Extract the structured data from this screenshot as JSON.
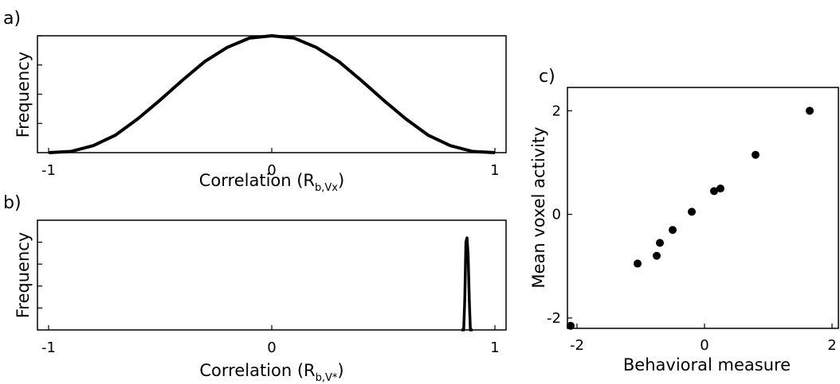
{
  "chart_data": [
    {
      "panel_label": "a)",
      "type": "line",
      "xlabel_main": "Correlation (R",
      "xlabel_sub": "b,Vx",
      "xlabel_close": ")",
      "ylabel": "Frequency",
      "xlim": [
        -1.05,
        1.05
      ],
      "ylim": [
        0,
        1
      ],
      "x_ticks": [
        -1,
        0,
        1
      ],
      "x_tick_labels": [
        "-1",
        "0",
        "1"
      ],
      "y_ticks": [
        0.25,
        0.5,
        0.75,
        1.0
      ],
      "series": [
        {
          "x": [
            -1,
            -0.9,
            -0.8,
            -0.7,
            -0.6,
            -0.5,
            -0.4,
            -0.3,
            -0.2,
            -0.1,
            0,
            0.1,
            0.2,
            0.3,
            0.4,
            0.5,
            0.6,
            0.7,
            0.8,
            0.9,
            1
          ],
          "y": [
            0,
            0.01,
            0.06,
            0.15,
            0.29,
            0.45,
            0.62,
            0.78,
            0.9,
            0.98,
            1,
            0.98,
            0.9,
            0.78,
            0.62,
            0.45,
            0.29,
            0.15,
            0.06,
            0.01,
            0
          ]
        }
      ]
    },
    {
      "panel_label": "b)",
      "type": "line",
      "xlabel_main": "Correlation (R",
      "xlabel_sub": "b,V*",
      "xlabel_close": ")",
      "ylabel": "Frequency",
      "xlim": [
        -1.05,
        1.05
      ],
      "ylim": [
        0,
        1.25
      ],
      "x_ticks": [
        -1,
        0,
        1
      ],
      "x_tick_labels": [
        "-1",
        "0",
        "1"
      ],
      "y_ticks": [
        0.25,
        0.5,
        0.75,
        1.0
      ],
      "series": [
        {
          "x": [
            0.85,
            0.86,
            0.865,
            0.87,
            0.875,
            0.88,
            0.885,
            0.89,
            0.9
          ],
          "y": [
            0,
            0,
            0.35,
            1.0,
            1.05,
            0.85,
            0.35,
            0,
            0
          ]
        }
      ]
    },
    {
      "panel_label": "c)",
      "type": "scatter",
      "xlabel": "Behavioral measure",
      "ylabel": "Mean voxel activity",
      "xlim": [
        -2.15,
        2.1
      ],
      "ylim": [
        -2.2,
        2.45
      ],
      "x_ticks": [
        -2,
        0,
        2
      ],
      "x_tick_labels": [
        "-2",
        "0",
        "2"
      ],
      "y_ticks": [
        -2,
        0,
        2
      ],
      "y_tick_labels": [
        "-2",
        "0",
        "2"
      ],
      "points": [
        {
          "x": -2.1,
          "y": -2.15
        },
        {
          "x": -1.05,
          "y": -0.95
        },
        {
          "x": -0.75,
          "y": -0.8
        },
        {
          "x": -0.7,
          "y": -0.55
        },
        {
          "x": -0.5,
          "y": -0.3
        },
        {
          "x": -0.2,
          "y": 0.05
        },
        {
          "x": 0.15,
          "y": 0.45
        },
        {
          "x": 0.25,
          "y": 0.5
        },
        {
          "x": 0.8,
          "y": 1.15
        },
        {
          "x": 1.65,
          "y": 2.0
        }
      ]
    }
  ]
}
